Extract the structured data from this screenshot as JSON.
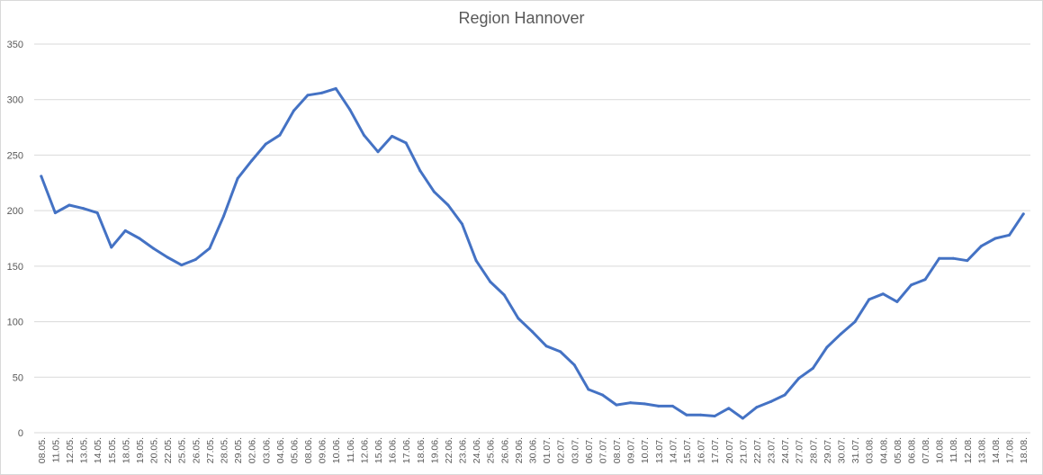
{
  "chart_data": {
    "type": "line",
    "title": "Region Hannover",
    "xlabel": "",
    "ylabel": "",
    "ylim": [
      0,
      350
    ],
    "yticks": [
      0,
      50,
      100,
      150,
      200,
      250,
      300,
      350
    ],
    "grid": true,
    "legend": "none",
    "colors": {
      "line": "#4472c4",
      "grid": "#d9d9d9",
      "text": "#595959"
    },
    "categories": [
      "08.05.",
      "11.05.",
      "12.05.",
      "13.05.",
      "14.05.",
      "15.05.",
      "18.05.",
      "19.05.",
      "20.05.",
      "22.05.",
      "25.05.",
      "26.05.",
      "27.05.",
      "28.05.",
      "29.05.",
      "02.06.",
      "03.06.",
      "04.06.",
      "05.06.",
      "08.06.",
      "09.06.",
      "10.06.",
      "11.06.",
      "12.06.",
      "15.06.",
      "16.06.",
      "17.06.",
      "18.06.",
      "19.06.",
      "22.06.",
      "23.06.",
      "24.06.",
      "25.06.",
      "26.06.",
      "29.06.",
      "30.06.",
      "01.07.",
      "02.07.",
      "03.07.",
      "06.07.",
      "07.07.",
      "08.07.",
      "09.07.",
      "10.07.",
      "13.07.",
      "14.07.",
      "15.07.",
      "16.07.",
      "17.07.",
      "20.07.",
      "21.07.",
      "22.07.",
      "23.07.",
      "24.07.",
      "27.07.",
      "28.07.",
      "29.07.",
      "30.07.",
      "31.07.",
      "03.08.",
      "04.08.",
      "05.08.",
      "06.08.",
      "07.08.",
      "10.08.",
      "11.08.",
      "12.08.",
      "13.08.",
      "14.08.",
      "17.08.",
      "18.08."
    ],
    "series": [
      {
        "values": [
          231,
          198,
          205,
          202,
          198,
          167,
          182,
          175,
          166,
          158,
          151,
          156,
          166,
          195,
          229,
          245,
          260,
          268,
          290,
          304,
          306,
          310,
          291,
          268,
          253,
          267,
          261,
          236,
          217,
          205,
          188,
          155,
          136,
          124,
          103,
          91,
          78,
          73,
          61,
          39,
          34,
          25,
          27,
          26,
          24,
          24,
          16,
          16,
          15,
          22,
          13,
          23,
          28,
          34,
          49,
          58,
          77,
          89,
          100,
          120,
          125,
          118,
          133,
          138,
          157,
          157,
          155,
          168,
          175,
          178,
          197
        ]
      }
    ]
  }
}
